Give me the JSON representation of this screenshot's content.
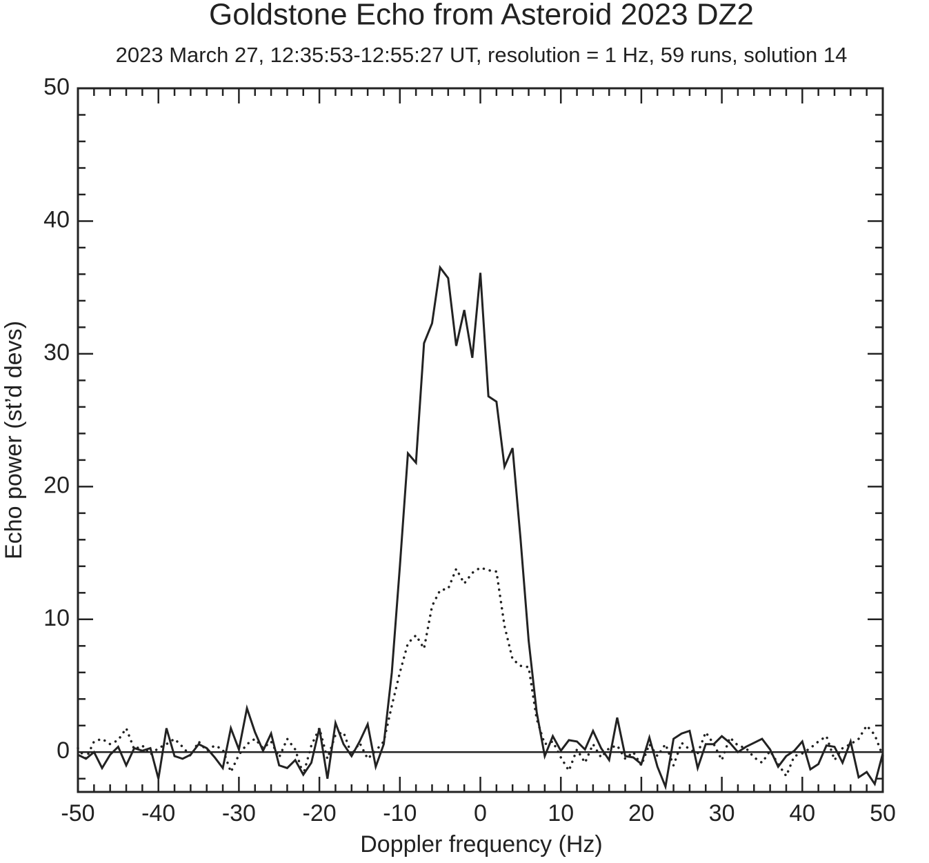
{
  "chart_data": {
    "type": "line",
    "title": "Goldstone Echo from Asteroid 2023 DZ2",
    "subtitle": "2023 March 27, 12:35:53-12:55:27 UT, resolution = 1 Hz, 59 runs, solution 14",
    "xlabel": "Doppler frequency (Hz)",
    "ylabel": "Echo power (st’d devs)",
    "x": [
      -50,
      -49,
      -48,
      -47,
      -46,
      -45,
      -44,
      -43,
      -42,
      -41,
      -40,
      -39,
      -38,
      -37,
      -36,
      -35,
      -34,
      -33,
      -32,
      -31,
      -30,
      -29,
      -28,
      -27,
      -26,
      -25,
      -24,
      -23,
      -22,
      -21,
      -20,
      -19,
      -18,
      -17,
      -16,
      -15,
      -14,
      -13,
      -12,
      -11,
      -10,
      -9,
      -8,
      -7,
      -6,
      -5,
      -4,
      -3,
      -2,
      -1,
      0,
      1,
      2,
      3,
      4,
      5,
      6,
      7,
      8,
      9,
      10,
      11,
      12,
      13,
      14,
      15,
      16,
      17,
      18,
      19,
      20,
      21,
      22,
      23,
      24,
      25,
      26,
      27,
      28,
      29,
      30,
      31,
      32,
      33,
      34,
      35,
      36,
      37,
      38,
      39,
      40,
      41,
      42,
      43,
      44,
      45,
      46,
      47,
      48,
      49,
      50
    ],
    "series": [
      {
        "color": "#222222",
        "linestyle": "solid",
        "values": [
          -0.2,
          -0.5,
          0,
          -1.2,
          -0.2,
          0.4,
          -1.0,
          0.3,
          0.1,
          0.3,
          -2.0,
          1.8,
          -0.3,
          -0.5,
          -0.2,
          0.6,
          0.3,
          -0.4,
          -1.2,
          1.8,
          0.2,
          3.3,
          1.5,
          0.1,
          1.4,
          -1.0,
          -1.2,
          -0.6,
          -1.7,
          -0.8,
          1.8,
          -2.0,
          2.2,
          0.6,
          -0.3,
          0.8,
          2.1,
          -1.1,
          0.6,
          6,
          14,
          22.5,
          21.8,
          30.8,
          32.3,
          36.5,
          35.7,
          30.6,
          33.3,
          29.7,
          36.1,
          26.8,
          26.4,
          21.5,
          22.9,
          16,
          8.4,
          3,
          -0.3,
          1.2,
          0.1,
          0.9,
          0.8,
          0.2,
          1.6,
          0.3,
          -0.6,
          2.6,
          -0.3,
          -0.4,
          -0.9,
          1.1,
          -1.1,
          -2.6,
          1.0,
          1.4,
          1.6,
          -1.2,
          0.6,
          0.6,
          1.2,
          0.7,
          0,
          0.4,
          0.7,
          1.0,
          0.2,
          -1.1,
          -0.3,
          0.1,
          0.8,
          -1.3,
          -0.9,
          0.5,
          0.4,
          -0.8,
          0.8,
          -1.9,
          -1.5,
          -2.4,
          -0.1
        ]
      },
      {
        "color": "#222222",
        "linestyle": "dotted",
        "values": [
          0.3,
          -0.5,
          0.8,
          1.0,
          0.6,
          0.9,
          1.8,
          0.2,
          0.5,
          -0.2,
          0.3,
          0.6,
          1.0,
          0.4,
          -0.3,
          0.8,
          0.1,
          0.5,
          0.2,
          -1.5,
          -0.2,
          0.6,
          1.0,
          0.3,
          0.8,
          -0.4,
          1.0,
          0.2,
          -1.7,
          0.5,
          1.8,
          -0.5,
          1.3,
          1.5,
          -0.2,
          0.7,
          -0.5,
          0.1,
          0.8,
          3.5,
          6,
          8.2,
          8.8,
          7.8,
          11,
          12.2,
          12.3,
          13.8,
          12.7,
          13.5,
          13.9,
          13.7,
          13.6,
          9.5,
          7,
          6.5,
          6.4,
          2.5,
          0.6,
          0.8,
          -0.4,
          -1.4,
          0.2,
          -0.8,
          0.6,
          -0.4,
          0.3,
          0.5,
          -0.5,
          0,
          -1.0,
          0.6,
          -0.3,
          0.6,
          -1.0,
          0.7,
          0.2,
          -0.1,
          1.5,
          0.6,
          -0.6,
          1.1,
          0.5,
          0.3,
          -0.4,
          -0.8,
          0.1,
          -0.9,
          -1.8,
          -0.3,
          -0.1,
          0.3,
          0.8,
          1.2,
          -0.6,
          0.3,
          0.6,
          1.0,
          2.0,
          1.3,
          -0.3
        ]
      }
    ],
    "xlim": [
      -50,
      50
    ],
    "ylim": [
      -3,
      50
    ],
    "xticks": [
      -50,
      -40,
      -30,
      -20,
      -10,
      0,
      10,
      20,
      30,
      40,
      50
    ],
    "yticks": [
      0,
      10,
      20,
      30,
      40,
      50
    ],
    "xminorticks": [
      -48,
      -46,
      -44,
      -42,
      -38,
      -36,
      -34,
      -32,
      -28,
      -26,
      -24,
      -22,
      -18,
      -16,
      -14,
      -12,
      -8,
      -6,
      -4,
      -2,
      2,
      4,
      6,
      8,
      12,
      14,
      16,
      18,
      22,
      24,
      26,
      28,
      32,
      34,
      36,
      38,
      42,
      44,
      46,
      48
    ],
    "yminorticks": [
      -2,
      2,
      4,
      6,
      8,
      12,
      14,
      16,
      18,
      22,
      24,
      26,
      28,
      32,
      34,
      36,
      38,
      42,
      44,
      46,
      48
    ],
    "hline": 0
  }
}
